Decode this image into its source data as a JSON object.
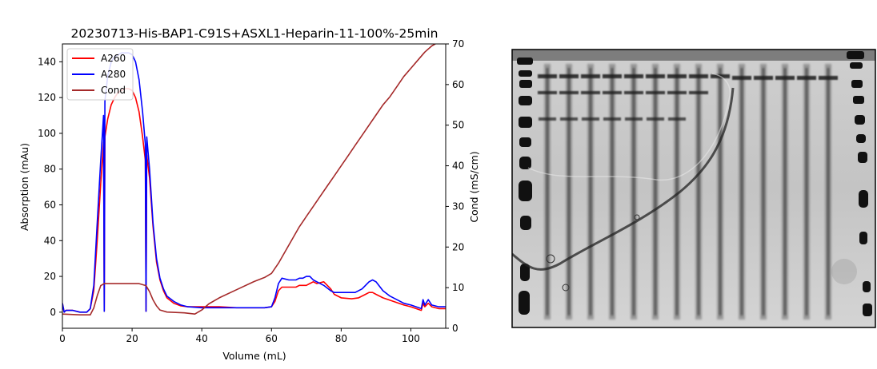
{
  "chart_data": [
    {
      "type": "line",
      "title": "20230713-His-BAP1-C91S+ASXL1-Heparin-11-100%-25min",
      "xlabel": "Volume (mL)",
      "ylabel": "Absorption (mAu)",
      "y2label": "Cond (mS/cm)",
      "xlim": [
        0,
        110
      ],
      "ylim": [
        -9,
        150
      ],
      "y2lim": [
        0,
        70
      ],
      "xticks": [
        0,
        20,
        40,
        60,
        80,
        100
      ],
      "yticks": [
        0,
        20,
        40,
        60,
        80,
        100,
        120,
        140
      ],
      "y2ticks": [
        0,
        10,
        20,
        30,
        40,
        50,
        60,
        70
      ],
      "legend": "top-left",
      "grid": false,
      "series": [
        {
          "name": "A260",
          "axis": "left",
          "color": "#ff0000",
          "points": [
            [
              0,
              5
            ],
            [
              0.5,
              0
            ],
            [
              1,
              1
            ],
            [
              3,
              1
            ],
            [
              5,
              0
            ],
            [
              7,
              0
            ],
            [
              8,
              2
            ],
            [
              9,
              12
            ],
            [
              10,
              40
            ],
            [
              11,
              72
            ],
            [
              11.8,
              95
            ],
            [
              12,
              0.5
            ],
            [
              12.2,
              98
            ],
            [
              13,
              108
            ],
            [
              14,
              116
            ],
            [
              15,
              120
            ],
            [
              16,
              123
            ],
            [
              17,
              124
            ],
            [
              18,
              125
            ],
            [
              19,
              125
            ],
            [
              20,
              124
            ],
            [
              21,
              120
            ],
            [
              22,
              112
            ],
            [
              23,
              98
            ],
            [
              23.8,
              85
            ],
            [
              24,
              0.5
            ],
            [
              24.2,
              88
            ],
            [
              25,
              75
            ],
            [
              26,
              48
            ],
            [
              27,
              28
            ],
            [
              28,
              18
            ],
            [
              29,
              12
            ],
            [
              30,
              8
            ],
            [
              32,
              5
            ],
            [
              34,
              3.5
            ],
            [
              36,
              3
            ],
            [
              40,
              3
            ],
            [
              45,
              3
            ],
            [
              50,
              2.5
            ],
            [
              55,
              2.5
            ],
            [
              58,
              2.5
            ],
            [
              60,
              3
            ],
            [
              61,
              6
            ],
            [
              62,
              12
            ],
            [
              63,
              14
            ],
            [
              65,
              14
            ],
            [
              67,
              14
            ],
            [
              68,
              15
            ],
            [
              70,
              15
            ],
            [
              71,
              16
            ],
            [
              72,
              17
            ],
            [
              73,
              16
            ],
            [
              75,
              17
            ],
            [
              77,
              13
            ],
            [
              78,
              10
            ],
            [
              80,
              8
            ],
            [
              83,
              7.5
            ],
            [
              85,
              8
            ],
            [
              87,
              10
            ],
            [
              88,
              11
            ],
            [
              89,
              11
            ],
            [
              90,
              10
            ],
            [
              92,
              8
            ],
            [
              95,
              6
            ],
            [
              98,
              4
            ],
            [
              100,
              3
            ],
            [
              103,
              1
            ],
            [
              103.5,
              5
            ],
            [
              104,
              3
            ],
            [
              105,
              5
            ],
            [
              106,
              3
            ],
            [
              108,
              2
            ],
            [
              110,
              2
            ]
          ]
        },
        {
          "name": "A280",
          "axis": "left",
          "color": "#0000ff",
          "points": [
            [
              0,
              5
            ],
            [
              0.5,
              0
            ],
            [
              1,
              1
            ],
            [
              3,
              1
            ],
            [
              5,
              0
            ],
            [
              7,
              0
            ],
            [
              8,
              2
            ],
            [
              9,
              15
            ],
            [
              10,
              50
            ],
            [
              11,
              85
            ],
            [
              11.8,
              110
            ],
            [
              12,
              0.5
            ],
            [
              12.2,
              118
            ],
            [
              13,
              132
            ],
            [
              14,
              140
            ],
            [
              15,
              143
            ],
            [
              16,
              144
            ],
            [
              17,
              145
            ],
            [
              18,
              145
            ],
            [
              19,
              145
            ],
            [
              20,
              144
            ],
            [
              21,
              140
            ],
            [
              22,
              130
            ],
            [
              23,
              112
            ],
            [
              23.8,
              94
            ],
            [
              24,
              0.5
            ],
            [
              24.2,
              98
            ],
            [
              25,
              80
            ],
            [
              26,
              50
            ],
            [
              27,
              30
            ],
            [
              28,
              19
            ],
            [
              29,
              13
            ],
            [
              30,
              9
            ],
            [
              32,
              6
            ],
            [
              34,
              4
            ],
            [
              36,
              3
            ],
            [
              40,
              2.5
            ],
            [
              45,
              2.5
            ],
            [
              50,
              2.5
            ],
            [
              55,
              2.5
            ],
            [
              58,
              2.5
            ],
            [
              60,
              3
            ],
            [
              61,
              8
            ],
            [
              62,
              16
            ],
            [
              63,
              19
            ],
            [
              65,
              18
            ],
            [
              67,
              18
            ],
            [
              68,
              19
            ],
            [
              69,
              19
            ],
            [
              70,
              20
            ],
            [
              71,
              20
            ],
            [
              72,
              18
            ],
            [
              73,
              17
            ],
            [
              75,
              15
            ],
            [
              77,
              12
            ],
            [
              78,
              11
            ],
            [
              80,
              11
            ],
            [
              82,
              11
            ],
            [
              84,
              11
            ],
            [
              86,
              13
            ],
            [
              88,
              17
            ],
            [
              89,
              18
            ],
            [
              90,
              17
            ],
            [
              92,
              12
            ],
            [
              94,
              9
            ],
            [
              96,
              7
            ],
            [
              98,
              5
            ],
            [
              100,
              4
            ],
            [
              103,
              2
            ],
            [
              103.5,
              7
            ],
            [
              104,
              4
            ],
            [
              105,
              7
            ],
            [
              106,
              4
            ],
            [
              108,
              3
            ],
            [
              110,
              3
            ]
          ]
        },
        {
          "name": "Cond",
          "axis": "right",
          "color": "#a52a2a",
          "points": [
            [
              0,
              3.5
            ],
            [
              5,
              3.3
            ],
            [
              8,
              3.3
            ],
            [
              9,
              5
            ],
            [
              10,
              8
            ],
            [
              11,
              10.5
            ],
            [
              12,
              11
            ],
            [
              14,
              11
            ],
            [
              16,
              11
            ],
            [
              18,
              11
            ],
            [
              20,
              11
            ],
            [
              22,
              11
            ],
            [
              24,
              10.5
            ],
            [
              25,
              9
            ],
            [
              26,
              7
            ],
            [
              27,
              5.5
            ],
            [
              28,
              4.5
            ],
            [
              30,
              4
            ],
            [
              35,
              3.8
            ],
            [
              38,
              3.5
            ],
            [
              40,
              4.5
            ],
            [
              42,
              6
            ],
            [
              45,
              7.5
            ],
            [
              50,
              9.5
            ],
            [
              55,
              11.5
            ],
            [
              58,
              12.5
            ],
            [
              60,
              13.5
            ],
            [
              62,
              16
            ],
            [
              64,
              19
            ],
            [
              66,
              22
            ],
            [
              68,
              25
            ],
            [
              70,
              27.5
            ],
            [
              72,
              30
            ],
            [
              74,
              32.5
            ],
            [
              76,
              35
            ],
            [
              78,
              37.5
            ],
            [
              80,
              40
            ],
            [
              82,
              42.5
            ],
            [
              84,
              45
            ],
            [
              86,
              47.5
            ],
            [
              88,
              50
            ],
            [
              90,
              52.5
            ],
            [
              92,
              55
            ],
            [
              94,
              57
            ],
            [
              96,
              59.5
            ],
            [
              98,
              62
            ],
            [
              100,
              64
            ],
            [
              102,
              66
            ],
            [
              104,
              68
            ],
            [
              106,
              69.5
            ],
            [
              108,
              70.5
            ],
            [
              110,
              71
            ]
          ]
        }
      ]
    }
  ],
  "gel": {
    "lane_count": 14,
    "colors": {
      "band": "#1a1a1a",
      "background": "#c8c8c8"
    }
  }
}
